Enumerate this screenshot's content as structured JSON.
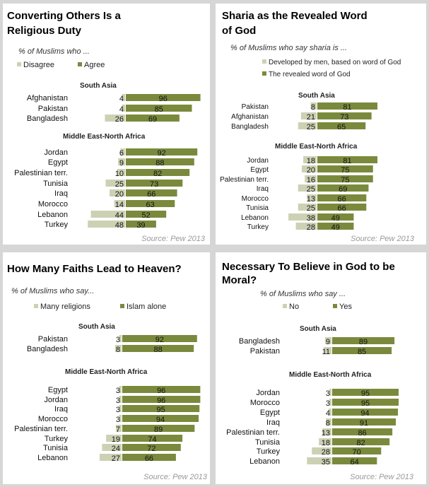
{
  "colors": {
    "disagree": "#cdd1b4",
    "agree": "#7a8a3d",
    "text": "#000000",
    "source": "#999999"
  },
  "charts": [
    {
      "title": "Converting Others Is a Religious Duty",
      "subtitle": "% of Muslims who ...",
      "legend_neg": "Disagree",
      "legend_pos": "Agree",
      "source": "Source: Pew 2013"
    },
    {
      "title": "Sharia as the Revealed Word of God",
      "subtitle": "% of Muslims who say sharia is ...",
      "legend_neg": "Developed by men, based on word of God",
      "legend_pos": "The revealed word of God",
      "source": "Source: Pew 2013"
    },
    {
      "title": "How Many Faiths Lead to Heaven?",
      "subtitle": "% of Muslims who say...",
      "legend_neg": "Many religions",
      "legend_pos": "Islam alone",
      "source": "Source: Pew 2013"
    },
    {
      "title": "Necessary To Believe in God to be Moral?",
      "subtitle": "% of Muslims who say ...",
      "legend_neg": "No",
      "legend_pos": "Yes",
      "source": "Source: Pew 2013"
    }
  ],
  "chart_data": [
    {
      "type": "bar",
      "orientation": "horizontal-diverging",
      "title": "Converting Others Is a Religious Duty",
      "series": [
        "Disagree",
        "Agree"
      ],
      "groups": [
        {
          "name": "South Asia",
          "rows": [
            {
              "label": "Afghanistan",
              "neg": 4,
              "pos": 96
            },
            {
              "label": "Pakistan",
              "neg": 4,
              "pos": 85
            },
            {
              "label": "Bangladesh",
              "neg": 26,
              "pos": 69
            }
          ]
        },
        {
          "name": "Middle East-North Africa",
          "rows": [
            {
              "label": "Jordan",
              "neg": 6,
              "pos": 92
            },
            {
              "label": "Egypt",
              "neg": 9,
              "pos": 88
            },
            {
              "label": "Palestinian terr.",
              "neg": 10,
              "pos": 82
            },
            {
              "label": "Tunisia",
              "neg": 25,
              "pos": 73
            },
            {
              "label": "Iraq",
              "neg": 20,
              "pos": 66
            },
            {
              "label": "Morocco",
              "neg": 14,
              "pos": 63
            },
            {
              "label": "Lebanon",
              "neg": 44,
              "pos": 52
            },
            {
              "label": "Turkey",
              "neg": 48,
              "pos": 39
            }
          ]
        }
      ]
    },
    {
      "type": "bar",
      "orientation": "horizontal-diverging",
      "title": "Sharia as the Revealed Word of God",
      "series": [
        "Developed by men, based on word of God",
        "The revealed word of God"
      ],
      "groups": [
        {
          "name": "South Asia",
          "rows": [
            {
              "label": "Pakistan",
              "neg": 8,
              "pos": 81
            },
            {
              "label": "Afghanistan",
              "neg": 21,
              "pos": 73
            },
            {
              "label": "Bangladesh",
              "neg": 25,
              "pos": 65
            }
          ]
        },
        {
          "name": "Middle East-North Africa",
          "rows": [
            {
              "label": "Jordan",
              "neg": 18,
              "pos": 81
            },
            {
              "label": "Egypt",
              "neg": 20,
              "pos": 75
            },
            {
              "label": "Palestinian terr.",
              "neg": 16,
              "pos": 75
            },
            {
              "label": "Iraq",
              "neg": 25,
              "pos": 69
            },
            {
              "label": "Morocco",
              "neg": 13,
              "pos": 66
            },
            {
              "label": "Tunisia",
              "neg": 25,
              "pos": 66
            },
            {
              "label": "Lebanon",
              "neg": 38,
              "pos": 49
            },
            {
              "label": "Turkey",
              "neg": 28,
              "pos": 49
            }
          ]
        }
      ]
    },
    {
      "type": "bar",
      "orientation": "horizontal-diverging",
      "title": "How Many Faiths Lead to Heaven?",
      "series": [
        "Many religions",
        "Islam alone"
      ],
      "groups": [
        {
          "name": "South Asia",
          "rows": [
            {
              "label": "Pakistan",
              "neg": 3,
              "pos": 92
            },
            {
              "label": "Bangladesh",
              "neg": 8,
              "pos": 88
            }
          ]
        },
        {
          "name": "Middle East-North Africa",
          "rows": [
            {
              "label": "Egypt",
              "neg": 3,
              "pos": 96
            },
            {
              "label": "Jordan",
              "neg": 3,
              "pos": 96
            },
            {
              "label": "Iraq",
              "neg": 3,
              "pos": 95
            },
            {
              "label": "Morocco",
              "neg": 3,
              "pos": 94
            },
            {
              "label": "Palestinian terr.",
              "neg": 7,
              "pos": 89
            },
            {
              "label": "Turkey",
              "neg": 19,
              "pos": 74
            },
            {
              "label": "Tunisia",
              "neg": 24,
              "pos": 72
            },
            {
              "label": "Lebanon",
              "neg": 27,
              "pos": 66
            }
          ]
        }
      ]
    },
    {
      "type": "bar",
      "orientation": "horizontal-diverging",
      "title": "Necessary To Believe in God to be Moral?",
      "series": [
        "No",
        "Yes"
      ],
      "groups": [
        {
          "name": "South Asia",
          "rows": [
            {
              "label": "Bangladesh",
              "neg": 9,
              "pos": 89
            },
            {
              "label": "Pakistan",
              "neg": 11,
              "pos": 85
            }
          ]
        },
        {
          "name": "Middle East-North Africa",
          "rows": [
            {
              "label": "Jordan",
              "neg": 3,
              "pos": 95
            },
            {
              "label": "Morocco",
              "neg": 3,
              "pos": 95
            },
            {
              "label": "Egypt",
              "neg": 4,
              "pos": 94
            },
            {
              "label": "Iraq",
              "neg": 8,
              "pos": 91
            },
            {
              "label": "Palestinian terr.",
              "neg": 13,
              "pos": 86
            },
            {
              "label": "Tunisia",
              "neg": 18,
              "pos": 82
            },
            {
              "label": "Turkey",
              "neg": 28,
              "pos": 70
            },
            {
              "label": "Lebanon",
              "neg": 35,
              "pos": 64
            }
          ]
        }
      ]
    }
  ]
}
